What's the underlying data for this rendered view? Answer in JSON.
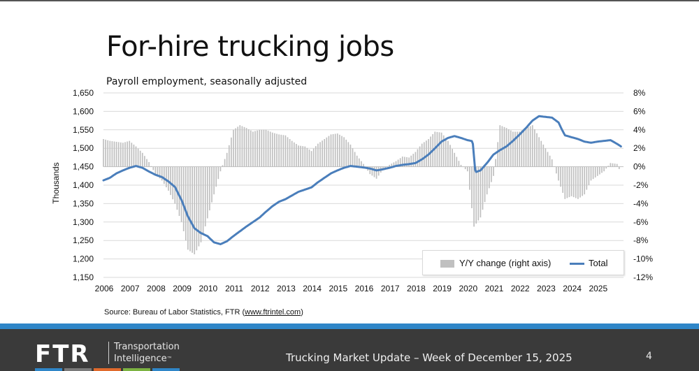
{
  "title": "For-hire trucking jobs",
  "subtitle": "Payroll employment, seasonally adjusted",
  "source": {
    "prefix": "Source: Bureau of Labor Statistics, FTR (",
    "link": "www.ftrintel.com",
    "suffix": ")"
  },
  "footer": {
    "logo": "FTR",
    "logo_sub_line1": "Transportation",
    "logo_sub_line2": "Intelligence",
    "logo_sub_tm": "™",
    "text": "Trucking Market Update – Week of December 15, 2025",
    "page": "4",
    "colors": [
      "#2f86c8",
      "#7a7a7a",
      "#e06a2c",
      "#7cb342",
      "#2f86c8"
    ]
  },
  "chart_data": {
    "type": "bar+line",
    "ylabel": "Thousands",
    "y_left": {
      "min": 1150,
      "max": 1650,
      "ticks": [
        1650,
        1600,
        1550,
        1500,
        1450,
        1400,
        1350,
        1300,
        1250,
        1200,
        1150
      ],
      "tick_labels": [
        "1,650",
        "1,600",
        "1,550",
        "1,500",
        "1,450",
        "1,400",
        "1,350",
        "1,300",
        "1,250",
        "1,200",
        "1,150"
      ]
    },
    "y_right": {
      "min": -12,
      "max": 8,
      "ticks": [
        8,
        6,
        4,
        2,
        0,
        -2,
        -4,
        -6,
        -8,
        -10,
        -12
      ],
      "tick_labels": [
        "8%",
        "6%",
        "4%",
        "2%",
        "0%",
        "-2%",
        "-4%",
        "-6%",
        "-8%",
        "-10%",
        "-12%"
      ]
    },
    "x": {
      "min": 2006,
      "max": 2026,
      "ticks": [
        2006,
        2007,
        2008,
        2009,
        2010,
        2011,
        2012,
        2013,
        2014,
        2015,
        2016,
        2017,
        2018,
        2019,
        2020,
        2021,
        2022,
        2023,
        2024,
        2025
      ],
      "tick_labels": [
        "2006",
        "2007",
        "2008",
        "2009",
        "2010",
        "2011",
        "2012",
        "2013",
        "2014",
        "2015",
        "2016",
        "2017",
        "2018",
        "2019",
        "2020",
        "2021",
        "2022",
        "2023",
        "2024",
        "2025"
      ]
    },
    "grid": "horizontal",
    "legend": {
      "position": "bottom-right",
      "bar_label": "Y/Y change (right axis)",
      "line_label": "Total"
    },
    "colors": {
      "bars": "#c0c0c0",
      "line": "#4a7ebb",
      "grid": "#d9d9d9"
    },
    "total_series": {
      "name": "Total",
      "points": [
        [
          2006.0,
          1413
        ],
        [
          2006.25,
          1420
        ],
        [
          2006.5,
          1432
        ],
        [
          2006.75,
          1440
        ],
        [
          2007.0,
          1447
        ],
        [
          2007.25,
          1452
        ],
        [
          2007.5,
          1447
        ],
        [
          2007.75,
          1437
        ],
        [
          2008.0,
          1428
        ],
        [
          2008.25,
          1422
        ],
        [
          2008.5,
          1410
        ],
        [
          2008.75,
          1395
        ],
        [
          2009.0,
          1360
        ],
        [
          2009.25,
          1315
        ],
        [
          2009.5,
          1283
        ],
        [
          2009.75,
          1270
        ],
        [
          2010.0,
          1262
        ],
        [
          2010.25,
          1245
        ],
        [
          2010.5,
          1240
        ],
        [
          2010.75,
          1248
        ],
        [
          2011.0,
          1262
        ],
        [
          2011.25,
          1275
        ],
        [
          2011.5,
          1288
        ],
        [
          2011.75,
          1300
        ],
        [
          2012.0,
          1312
        ],
        [
          2012.25,
          1328
        ],
        [
          2012.5,
          1343
        ],
        [
          2012.75,
          1355
        ],
        [
          2013.0,
          1362
        ],
        [
          2013.25,
          1372
        ],
        [
          2013.5,
          1382
        ],
        [
          2013.75,
          1388
        ],
        [
          2014.0,
          1394
        ],
        [
          2014.25,
          1408
        ],
        [
          2014.5,
          1420
        ],
        [
          2014.75,
          1432
        ],
        [
          2015.0,
          1440
        ],
        [
          2015.25,
          1447
        ],
        [
          2015.5,
          1452
        ],
        [
          2015.75,
          1450
        ],
        [
          2016.0,
          1448
        ],
        [
          2016.25,
          1445
        ],
        [
          2016.5,
          1440
        ],
        [
          2016.75,
          1443
        ],
        [
          2017.0,
          1447
        ],
        [
          2017.25,
          1452
        ],
        [
          2017.5,
          1455
        ],
        [
          2017.75,
          1457
        ],
        [
          2018.0,
          1460
        ],
        [
          2018.25,
          1470
        ],
        [
          2018.5,
          1483
        ],
        [
          2018.75,
          1500
        ],
        [
          2019.0,
          1518
        ],
        [
          2019.25,
          1528
        ],
        [
          2019.5,
          1533
        ],
        [
          2019.75,
          1528
        ],
        [
          2020.0,
          1522
        ],
        [
          2020.2,
          1519
        ],
        [
          2020.3,
          1435
        ],
        [
          2020.5,
          1440
        ],
        [
          2020.75,
          1460
        ],
        [
          2021.0,
          1483
        ],
        [
          2021.25,
          1495
        ],
        [
          2021.5,
          1505
        ],
        [
          2021.75,
          1520
        ],
        [
          2022.0,
          1537
        ],
        [
          2022.25,
          1555
        ],
        [
          2022.5,
          1575
        ],
        [
          2022.75,
          1587
        ],
        [
          2023.0,
          1585
        ],
        [
          2023.25,
          1583
        ],
        [
          2023.5,
          1570
        ],
        [
          2023.6,
          1555
        ],
        [
          2023.75,
          1535
        ],
        [
          2024.0,
          1530
        ],
        [
          2024.25,
          1525
        ],
        [
          2024.5,
          1518
        ],
        [
          2024.75,
          1515
        ],
        [
          2025.0,
          1518
        ],
        [
          2025.25,
          1520
        ],
        [
          2025.5,
          1522
        ],
        [
          2025.75,
          1512
        ],
        [
          2025.9,
          1505
        ]
      ]
    },
    "yoy_series": {
      "name": "Y/Y change (right axis)",
      "points": [
        [
          2006.0,
          3.0
        ],
        [
          2006.25,
          2.8
        ],
        [
          2006.5,
          2.7
        ],
        [
          2006.75,
          2.6
        ],
        [
          2007.0,
          2.8
        ],
        [
          2007.25,
          2.2
        ],
        [
          2007.5,
          1.5
        ],
        [
          2007.75,
          0.5
        ],
        [
          2008.0,
          -0.8
        ],
        [
          2008.25,
          -1.5
        ],
        [
          2008.5,
          -2.6
        ],
        [
          2008.75,
          -4.0
        ],
        [
          2009.0,
          -6.0
        ],
        [
          2009.25,
          -9.0
        ],
        [
          2009.5,
          -9.5
        ],
        [
          2009.75,
          -8.2
        ],
        [
          2010.0,
          -5.6
        ],
        [
          2010.25,
          -3.0
        ],
        [
          2010.5,
          -0.5
        ],
        [
          2010.75,
          1.5
        ],
        [
          2011.0,
          4.0
        ],
        [
          2011.25,
          4.5
        ],
        [
          2011.5,
          4.2
        ],
        [
          2011.75,
          3.8
        ],
        [
          2012.0,
          4.0
        ],
        [
          2012.25,
          4.0
        ],
        [
          2012.5,
          3.7
        ],
        [
          2012.75,
          3.5
        ],
        [
          2013.0,
          3.4
        ],
        [
          2013.25,
          2.8
        ],
        [
          2013.5,
          2.3
        ],
        [
          2013.75,
          2.2
        ],
        [
          2014.0,
          1.7
        ],
        [
          2014.25,
          2.5
        ],
        [
          2014.5,
          3.0
        ],
        [
          2014.75,
          3.5
        ],
        [
          2015.0,
          3.6
        ],
        [
          2015.25,
          3.2
        ],
        [
          2015.5,
          2.4
        ],
        [
          2015.75,
          1.2
        ],
        [
          2016.0,
          0.3
        ],
        [
          2016.25,
          -0.8
        ],
        [
          2016.5,
          -1.3
        ],
        [
          2016.75,
          -0.3
        ],
        [
          2017.0,
          0.2
        ],
        [
          2017.25,
          0.6
        ],
        [
          2017.5,
          1.1
        ],
        [
          2017.75,
          1.0
        ],
        [
          2018.0,
          1.6
        ],
        [
          2018.25,
          2.5
        ],
        [
          2018.5,
          3.0
        ],
        [
          2018.75,
          3.8
        ],
        [
          2019.0,
          3.7
        ],
        [
          2019.25,
          2.8
        ],
        [
          2019.5,
          1.5
        ],
        [
          2019.75,
          0.2
        ],
        [
          2020.0,
          -0.5
        ],
        [
          2020.25,
          -6.5
        ],
        [
          2020.5,
          -5.5
        ],
        [
          2020.75,
          -3.0
        ],
        [
          2021.0,
          -1.0
        ],
        [
          2021.25,
          4.5
        ],
        [
          2021.5,
          4.2
        ],
        [
          2021.75,
          3.8
        ],
        [
          2022.0,
          3.8
        ],
        [
          2022.25,
          4.2
        ],
        [
          2022.5,
          4.5
        ],
        [
          2022.75,
          3.2
        ],
        [
          2023.0,
          2.0
        ],
        [
          2023.25,
          0.8
        ],
        [
          2023.5,
          -1.5
        ],
        [
          2023.75,
          -3.5
        ],
        [
          2024.0,
          -3.2
        ],
        [
          2024.25,
          -3.5
        ],
        [
          2024.5,
          -3.0
        ],
        [
          2024.75,
          -1.5
        ],
        [
          2025.0,
          -1.0
        ],
        [
          2025.25,
          -0.5
        ],
        [
          2025.5,
          0.4
        ],
        [
          2025.75,
          0.3
        ],
        [
          2025.9,
          -0.7
        ]
      ]
    }
  }
}
